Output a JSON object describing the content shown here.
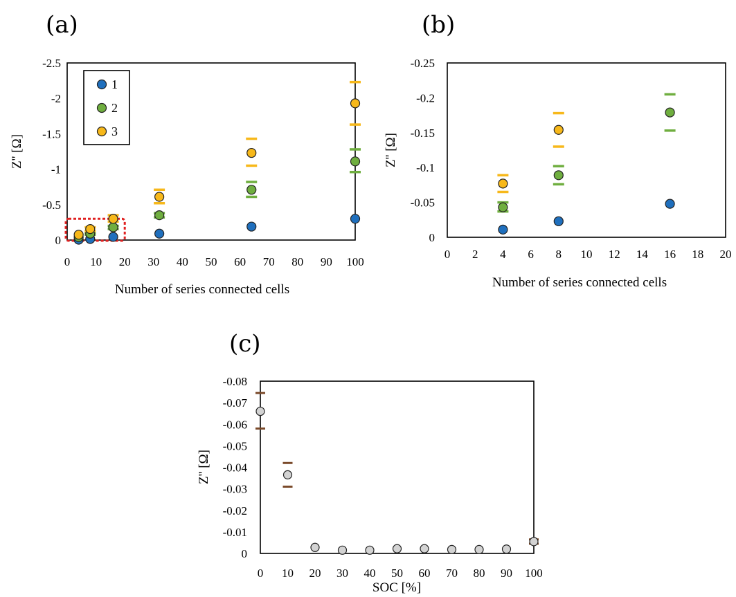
{
  "panels": {
    "a": {
      "label": "(a)"
    },
    "b": {
      "label": "(b)"
    },
    "c": {
      "label": "(c)"
    }
  },
  "colors": {
    "s1": "#1f6fbd",
    "s2": "#6fae3f",
    "s3": "#f7b81a",
    "err1": "#1f6fbd",
    "err2": "#6fae3f",
    "err3": "#f7b81a",
    "gray": "#d3d3d3",
    "errC": "#7a4a2a",
    "zoomBox": "#e02020"
  },
  "chart_data": [
    {
      "id": "a",
      "type": "scatter",
      "xlabel": "Number of series connected cells",
      "ylabel": "Z'' [Ω]",
      "xlim": [
        0,
        100
      ],
      "ylim": [
        0,
        -2.5
      ],
      "xticks": [
        "0",
        "10",
        "20",
        "30",
        "40",
        "50",
        "60",
        "70",
        "80",
        "90",
        "100"
      ],
      "xtick_values": [
        0,
        10,
        20,
        30,
        40,
        50,
        60,
        70,
        80,
        90,
        100
      ],
      "yticks": [
        "0",
        "-0.5",
        "-1",
        "-1.5",
        "-2",
        "-2.5"
      ],
      "ytick_values": [
        0,
        -0.5,
        -1,
        -1.5,
        -2,
        -2.5
      ],
      "legend": {
        "position": "top-left",
        "entries": [
          "1",
          "2",
          "3"
        ]
      },
      "zoom_box": {
        "x": [
          0,
          20
        ],
        "y": [
          0,
          -0.3
        ]
      },
      "series": [
        {
          "name": "1",
          "x": [
            4,
            8,
            16,
            32,
            64,
            100
          ],
          "y": [
            -0.005,
            -0.015,
            -0.045,
            -0.09,
            -0.19,
            -0.3
          ],
          "err_hi": [
            null,
            null,
            null,
            null,
            null,
            null
          ],
          "err_lo": [
            null,
            null,
            null,
            null,
            null,
            null
          ]
        },
        {
          "name": "2",
          "x": [
            4,
            8,
            16,
            32,
            64,
            100
          ],
          "y": [
            -0.04,
            -0.09,
            -0.18,
            -0.35,
            -0.71,
            -1.11
          ],
          "err_hi": [
            null,
            -0.1,
            -0.2,
            -0.38,
            -0.82,
            -1.28
          ],
          "err_lo": [
            null,
            -0.075,
            -0.155,
            -0.32,
            -0.61,
            -0.96
          ]
        },
        {
          "name": "3",
          "x": [
            4,
            8,
            16,
            32,
            64,
            100
          ],
          "y": [
            -0.075,
            -0.155,
            -0.3,
            -0.61,
            -1.23,
            -1.93
          ],
          "err_hi": [
            null,
            -0.18,
            -0.35,
            -0.71,
            -1.43,
            -2.23
          ],
          "err_lo": [
            null,
            -0.13,
            -0.26,
            -0.52,
            -1.05,
            -1.63
          ]
        }
      ]
    },
    {
      "id": "b",
      "type": "scatter",
      "xlabel": "Number of series connected cells",
      "ylabel": "Z'' [Ω]",
      "xlim": [
        0,
        20
      ],
      "ylim": [
        0,
        -0.25
      ],
      "xticks": [
        "0",
        "2",
        "4",
        "6",
        "8",
        "10",
        "12",
        "14",
        "16",
        "18",
        "20"
      ],
      "xtick_values": [
        0,
        2,
        4,
        6,
        8,
        10,
        12,
        14,
        16,
        18,
        20
      ],
      "yticks": [
        "0",
        "-0.05",
        "-0.1",
        "-0.15",
        "-0.2",
        "-0.25"
      ],
      "ytick_values": [
        0,
        -0.05,
        -0.1,
        -0.15,
        -0.2,
        -0.25
      ],
      "series": [
        {
          "name": "1",
          "x": [
            4,
            8,
            16
          ],
          "y": [
            -0.011,
            -0.023,
            -0.048
          ],
          "err_hi": [
            null,
            null,
            null
          ],
          "err_lo": [
            null,
            null,
            null
          ]
        },
        {
          "name": "2",
          "x": [
            4,
            8,
            16
          ],
          "y": [
            -0.043,
            -0.089,
            -0.179
          ],
          "err_hi": [
            -0.05,
            -0.102,
            -0.205
          ],
          "err_lo": [
            -0.037,
            -0.076,
            -0.153
          ]
        },
        {
          "name": "3",
          "x": [
            4,
            8,
            16
          ],
          "y": [
            -0.077,
            -0.154,
            null
          ],
          "err_hi": [
            -0.089,
            -0.178,
            null
          ],
          "err_lo": [
            -0.065,
            -0.13,
            null
          ]
        }
      ]
    },
    {
      "id": "c",
      "type": "scatter",
      "xlabel": "SOC [%]",
      "ylabel": "Z'' [Ω]",
      "xlim": [
        0,
        100
      ],
      "ylim": [
        0,
        -0.08
      ],
      "xticks": [
        "0",
        "10",
        "20",
        "30",
        "40",
        "50",
        "60",
        "70",
        "80",
        "90",
        "100"
      ],
      "xtick_values": [
        0,
        10,
        20,
        30,
        40,
        50,
        60,
        70,
        80,
        90,
        100
      ],
      "yticks": [
        "0",
        "-0.01",
        "-0.02",
        "-0.03",
        "-0.04",
        "-0.05",
        "-0.06",
        "-0.07",
        "-0.08"
      ],
      "ytick_values": [
        0,
        -0.01,
        -0.02,
        -0.03,
        -0.04,
        -0.05,
        -0.06,
        -0.07,
        -0.08
      ],
      "series": [
        {
          "x": [
            0,
            10,
            20,
            30,
            40,
            50,
            60,
            70,
            80,
            90,
            100
          ],
          "y": [
            -0.066,
            -0.0365,
            -0.0028,
            -0.0015,
            -0.0015,
            -0.0022,
            -0.0022,
            -0.0018,
            -0.0018,
            -0.002,
            -0.0055
          ],
          "err_hi": [
            -0.0745,
            -0.042,
            null,
            null,
            null,
            null,
            null,
            null,
            null,
            null,
            -0.0065
          ],
          "err_lo": [
            -0.058,
            -0.031,
            null,
            null,
            null,
            null,
            null,
            null,
            null,
            null,
            -0.0045
          ]
        }
      ]
    }
  ]
}
